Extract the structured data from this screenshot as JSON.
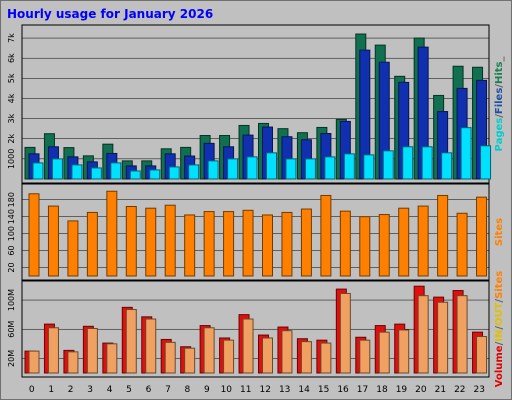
{
  "chart_data": {
    "type": "bar",
    "title": "Hourly usage for January 2026",
    "hours": [
      "0",
      "1",
      "2",
      "3",
      "4",
      "5",
      "6",
      "7",
      "8",
      "9",
      "10",
      "11",
      "12",
      "13",
      "14",
      "15",
      "16",
      "17",
      "18",
      "19",
      "20",
      "21",
      "22",
      "23"
    ],
    "panels": [
      {
        "name": "pages_files_hits",
        "ylim": [
          0,
          7500
        ],
        "ticks": [
          "1000",
          "2k",
          "3k",
          "4k",
          "5k",
          "6k",
          "7k"
        ],
        "tick_values": [
          1000,
          2000,
          3000,
          4000,
          5000,
          6000,
          7000
        ],
        "side_labels": [
          {
            "text": "Pages",
            "color": "#00cccc"
          },
          {
            "text": "/",
            "color": "#606060"
          },
          {
            "text": "Files",
            "color": "#2050a0"
          },
          {
            "text": "/",
            "color": "#606060"
          },
          {
            "text": "Hits",
            "color": "#1a8050"
          },
          {
            "text": "_",
            "color": "#606060"
          }
        ],
        "series": [
          {
            "name": "Hits",
            "color": "#107050",
            "values": [
              1570,
              2250,
              1560,
              1150,
              1730,
              900,
              900,
              1500,
              1570,
              2160,
              2160,
              2660,
              2760,
              2500,
              2300,
              2560,
              2960,
              7200,
              6650,
              5100,
              7000,
              4150,
              5600,
              5550
            ]
          },
          {
            "name": "Files",
            "color": "#1030b0",
            "values": [
              1250,
              1600,
              1100,
              850,
              1270,
              650,
              650,
              1250,
              1140,
              1770,
              1600,
              2180,
              2580,
              2100,
              1950,
              2260,
              2860,
              6400,
              5800,
              4800,
              6550,
              3350,
              4500,
              4900
            ]
          },
          {
            "name": "Pages",
            "color": "#00e0ff",
            "values": [
              800,
              1000,
              700,
              550,
              800,
              400,
              450,
              600,
              700,
              900,
              1000,
              1100,
              1300,
              1000,
              1000,
              1100,
              1250,
              1200,
              1400,
              1600,
              1600,
              1300,
              2550,
              1650
            ]
          }
        ]
      },
      {
        "name": "sites",
        "ylim": [
          0,
          210
        ],
        "ticks": [
          "20",
          "60",
          "100",
          "140",
          "180"
        ],
        "tick_values": [
          20,
          60,
          100,
          140,
          180
        ],
        "side_labels": [
          {
            "text": "Sites",
            "color": "#ff8000"
          }
        ],
        "series": [
          {
            "name": "Sites",
            "color": "#ff8000",
            "values": [
              194,
              165,
              130,
              150,
              200,
              164,
              160,
              167,
              144,
              152,
              152,
              155,
              144,
              150,
              158,
              190,
              153,
              140,
              145,
              160,
              165,
              190,
              148,
              186
            ]
          }
        ]
      },
      {
        "name": "volume",
        "ylim": [
          0,
          122
        ],
        "ticks": [
          "20M",
          "60M",
          "100M"
        ],
        "tick_values": [
          20,
          60,
          100
        ],
        "side_labels": [
          {
            "text": "Volume",
            "color": "#e00000"
          },
          {
            "text": "/",
            "color": "#606060"
          },
          {
            "text": "IN",
            "color": "#e0c000"
          },
          {
            "text": "/",
            "color": "#606060"
          },
          {
            "text": "OUT",
            "color": "#e0c000"
          },
          {
            "text": "/",
            "color": "#606060"
          },
          {
            "text": "Sites",
            "color": "#ff8000"
          }
        ],
        "series": [
          {
            "name": "Volume",
            "color": "#e01010",
            "values": [
              30,
              67,
              31,
              64,
              41,
              90,
              77,
              46,
              36,
              65,
              48,
              80,
              52,
              63,
              47,
              45,
              115,
              49,
              65,
              67,
              119,
              104,
              113,
              56
            ]
          },
          {
            "name": "OUT",
            "color": "#f0a060",
            "values": [
              30,
              62,
              29,
              61,
              40,
              87,
              74,
              42,
              34,
              62,
              45,
              74,
              48,
              58,
              43,
              41,
              109,
              45,
              56,
              59,
              106,
              97,
              106,
              50
            ]
          }
        ]
      }
    ]
  }
}
